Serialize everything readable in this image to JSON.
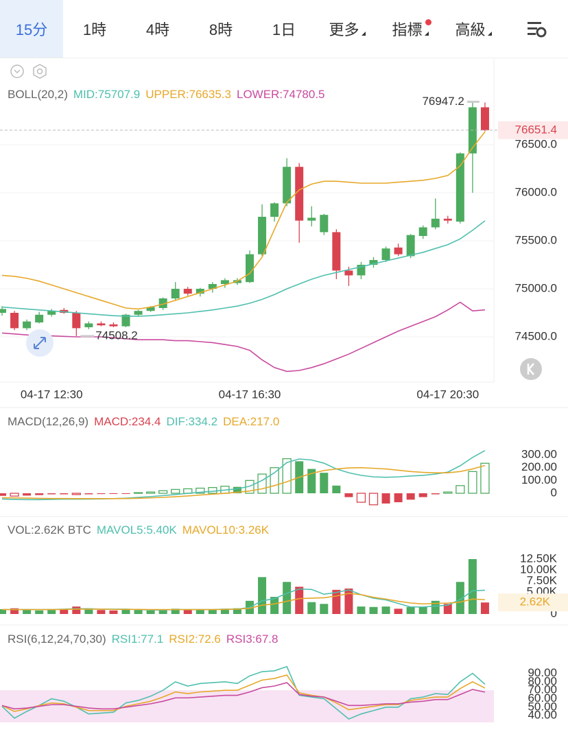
{
  "header": {
    "tabs": [
      "15分",
      "1時",
      "4時",
      "8時",
      "1日",
      "更多",
      "指標",
      "高級"
    ]
  },
  "chart_data": [
    {
      "type": "candlestick",
      "title": "BOLL(20,2)",
      "categories": [
        null,
        null,
        null,
        null,
        "04-17 12:30",
        null,
        null,
        null,
        null,
        null,
        null,
        null,
        null,
        null,
        null,
        null,
        null,
        null,
        null,
        null,
        "04-17 16:30",
        null,
        null,
        null,
        null,
        null,
        null,
        null,
        null,
        null,
        null,
        null,
        null,
        null,
        null,
        null,
        "04-17 20:30",
        null,
        null,
        null
      ],
      "open": [
        74750,
        74750,
        74590,
        74650,
        74730,
        74780,
        74750,
        74600,
        74640,
        74630,
        74610,
        74730,
        74770,
        74800,
        74900,
        75000,
        74950,
        75000,
        75050,
        75060,
        75070,
        75360,
        75750,
        75890,
        76270,
        75710,
        75590,
        75590,
        75190,
        75140,
        75250,
        75300,
        75430,
        75340,
        75550,
        75640,
        75730,
        75700,
        76410,
        76890
      ],
      "high": [
        74820,
        74770,
        74680,
        74760,
        74790,
        74800,
        74770,
        74660,
        74660,
        74650,
        74740,
        74780,
        74820,
        74910,
        75070,
        75020,
        75010,
        75070,
        75110,
        75110,
        75400,
        75880,
        75900,
        76360,
        76310,
        75860,
        75780,
        75620,
        75230,
        75280,
        75330,
        75440,
        75470,
        75570,
        75660,
        75940,
        75760,
        76420,
        76947.2,
        76940
      ],
      "low": [
        74720,
        74570,
        74570,
        74640,
        74710,
        74740,
        74508.2,
        74580,
        74610,
        74600,
        74600,
        74710,
        74760,
        74780,
        74880,
        74930,
        74920,
        74960,
        75010,
        75040,
        75060,
        75340,
        75700,
        75860,
        75480,
        75650,
        75560,
        75100,
        75030,
        75100,
        75220,
        75280,
        75340,
        75320,
        75520,
        75620,
        75680,
        75680,
        76000,
        76640
      ],
      "close": [
        74790,
        74590,
        74660,
        74730,
        74770,
        74750,
        74590,
        74640,
        74620,
        74610,
        74730,
        74770,
        74810,
        74900,
        75000,
        74950,
        75000,
        75050,
        75090,
        75090,
        75360,
        75750,
        75890,
        76270,
        75710,
        75740,
        75770,
        75190,
        75140,
        75250,
        75300,
        75420,
        75360,
        75560,
        75640,
        75730,
        75710,
        76410,
        76890,
        76651.4
      ],
      "up_color": "#4dab5f",
      "down_color": "#d9434f",
      "series": [
        {
          "name": "MID:75707.9",
          "color": "#4fbfae",
          "values": [
            74810,
            74800,
            74790,
            74780,
            74770,
            74760,
            74750,
            74740,
            74730,
            74720,
            74715,
            74715,
            74720,
            74730,
            74740,
            74750,
            74765,
            74780,
            74800,
            74820,
            74850,
            74890,
            74940,
            75000,
            75050,
            75100,
            75140,
            75170,
            75200,
            75230,
            75260,
            75290,
            75320,
            75350,
            75380,
            75420,
            75460,
            75520,
            75610,
            75707.9
          ]
        },
        {
          "name": "UPPER:76635.3",
          "color": "#e6a82a",
          "values": [
            75140,
            75130,
            75110,
            75080,
            75040,
            75000,
            74960,
            74920,
            74880,
            74840,
            74800,
            74790,
            74810,
            74840,
            74880,
            74920,
            74960,
            75000,
            75040,
            75080,
            75160,
            75330,
            75620,
            75900,
            76030,
            76090,
            76120,
            76120,
            76110,
            76100,
            76100,
            76100,
            76110,
            76120,
            76130,
            76150,
            76180,
            76280,
            76470,
            76635.3
          ]
        },
        {
          "name": "LOWER:74780.5",
          "color": "#c94a9f",
          "values": [
            74540,
            74530,
            74520,
            74510,
            74510,
            74505,
            74500,
            74500,
            74500,
            74490,
            74480,
            74470,
            74470,
            74470,
            74460,
            74460,
            74450,
            74440,
            74420,
            74400,
            74360,
            74260,
            74180,
            74140,
            74150,
            74180,
            74220,
            74270,
            74320,
            74380,
            74440,
            74500,
            74560,
            74610,
            74660,
            74710,
            74780,
            74860,
            74770,
            74780.5
          ]
        }
      ],
      "ylim": [
        74050,
        77100
      ],
      "yticks": [
        {
          "value": 76500,
          "label": "76500.0"
        },
        {
          "value": 76000,
          "label": "76000.0"
        },
        {
          "value": 75500,
          "label": "75500.0"
        },
        {
          "value": 75000,
          "label": "75000.0"
        },
        {
          "value": 74500,
          "label": "74500.0"
        }
      ],
      "grid": true
    },
    {
      "type": "bar",
      "title": "MACD(12,26,9)",
      "color_by": "sign",
      "up_color": "#4dab5f",
      "down_color": "#d9434f",
      "bars": {
        "name": "MACD:234.4",
        "values": [
          -20,
          -22,
          -18,
          -14,
          -8,
          -8,
          -10,
          -8,
          -6,
          -5,
          -3,
          5,
          10,
          20,
          30,
          35,
          40,
          45,
          55,
          50,
          100,
          150,
          200,
          270,
          250,
          190,
          160,
          60,
          -30,
          -70,
          -90,
          -80,
          -70,
          -50,
          -30,
          -8,
          10,
          60,
          170,
          234.4
        ]
      },
      "series": [
        {
          "name": "DIF:334.2",
          "color": "#4fbfae",
          "values": [
            -45,
            -48,
            -50,
            -50,
            -48,
            -46,
            -46,
            -45,
            -44,
            -42,
            -38,
            -32,
            -26,
            -18,
            -10,
            0,
            8,
            15,
            25,
            35,
            55,
            100,
            160,
            240,
            268,
            260,
            235,
            190,
            160,
            140,
            128,
            125,
            128,
            135,
            140,
            150,
            165,
            215,
            280,
            334.2
          ]
        },
        {
          "name": "DEA:217.0",
          "color": "#e6a82a",
          "values": [
            -35,
            -36,
            -38,
            -40,
            -41,
            -41,
            -42,
            -42,
            -42,
            -42,
            -41,
            -39,
            -36,
            -32,
            -27,
            -21,
            -14,
            -7,
            0,
            8,
            18,
            35,
            60,
            90,
            125,
            155,
            178,
            190,
            198,
            200,
            195,
            190,
            180,
            170,
            163,
            160,
            160,
            170,
            190,
            217
          ]
        }
      ],
      "ylim": [
        -166,
        477
      ],
      "yticks": [
        {
          "value": 300,
          "label": "300.00"
        },
        {
          "value": 200,
          "label": "200.00"
        },
        {
          "value": 100,
          "label": "100.00"
        },
        0
      ]
    },
    {
      "type": "bar",
      "title": "VOL:2.62K BTC",
      "color_by": "candle",
      "up_color": "#4dab5f",
      "down_color": "#d9434f",
      "bars": {
        "values": [
          1100,
          1300,
          900,
          800,
          900,
          1000,
          1700,
          1000,
          900,
          800,
          1100,
          900,
          800,
          1000,
          1200,
          1000,
          900,
          1000,
          1200,
          1300,
          3000,
          8400,
          3900,
          7300,
          6200,
          2700,
          2300,
          5500,
          5800,
          1700,
          1600,
          1700,
          1200,
          1600,
          1700,
          3000,
          2300,
          7300,
          12500,
          2620
        ]
      },
      "last_label": "2.62K",
      "last_label_color": "#e6a82a",
      "series": [
        {
          "name": "MAVOL5:5.40K",
          "color": "#4fbfae",
          "values": [
            1000,
            1000,
            1000,
            1000,
            1000,
            1100,
            1200,
            1200,
            1100,
            1100,
            1100,
            1000,
            900,
            900,
            1000,
            1000,
            1000,
            1000,
            1100,
            1100,
            1500,
            3000,
            3500,
            4700,
            5700,
            5600,
            4500,
            4900,
            5500,
            4400,
            3600,
            3200,
            2400,
            1600,
            1600,
            1800,
            2000,
            3300,
            5300,
            5400
          ]
        },
        {
          "name": "MAVOL10:3.26K",
          "color": "#e6a82a",
          "values": [
            1000,
            1000,
            1000,
            1000,
            1000,
            1050,
            1100,
            1100,
            1100,
            1050,
            1050,
            1050,
            1000,
            1000,
            1000,
            1000,
            1000,
            1000,
            1050,
            1100,
            1300,
            2000,
            2300,
            2900,
            3500,
            3600,
            3700,
            4100,
            4700,
            4400,
            3800,
            3400,
            2900,
            2500,
            2300,
            2400,
            2500,
            2700,
            3400,
            3260
          ]
        }
      ],
      "ylim": [
        0,
        16400
      ],
      "yticks": [
        {
          "value": 12500,
          "label": "12.50K"
        },
        {
          "value": 10000,
          "label": "10.00K"
        },
        {
          "value": 7500,
          "label": "7.50K"
        },
        {
          "value": 5000,
          "label": "5.00K"
        },
        0
      ]
    },
    {
      "type": "line",
      "title": "RSI(6,12,24,70,30)",
      "band": [
        30,
        70
      ],
      "band_color": "#f7e3f3",
      "series": [
        {
          "name": "RSI1:77.1",
          "color": "#4fbfae",
          "values": [
            51,
            37,
            45,
            52,
            60,
            57,
            50,
            42,
            43,
            44,
            55,
            58,
            63,
            70,
            80,
            75,
            78,
            79,
            80,
            78,
            87,
            92,
            93,
            98,
            64,
            62,
            60,
            48,
            36,
            42,
            46,
            50,
            50,
            60,
            62,
            66,
            65,
            80,
            90,
            77.1
          ]
        },
        {
          "name": "RSI2:72.6",
          "color": "#e6a82a",
          "values": [
            52,
            45,
            48,
            52,
            55,
            54,
            50,
            46,
            46,
            46,
            51,
            54,
            57,
            62,
            68,
            66,
            68,
            69,
            70,
            70,
            76,
            82,
            84,
            88,
            67,
            64,
            62,
            55,
            47,
            49,
            51,
            53,
            53,
            58,
            60,
            62,
            62,
            72,
            80,
            72.6
          ]
        },
        {
          "name": "RSI3:67.8",
          "color": "#c94a9f",
          "values": [
            52,
            48,
            49,
            51,
            53,
            53,
            51,
            49,
            48,
            48,
            50,
            52,
            54,
            57,
            61,
            61,
            62,
            63,
            64,
            64,
            68,
            73,
            75,
            79,
            65,
            63,
            62,
            57,
            52,
            52,
            53,
            54,
            54,
            56,
            57,
            59,
            59,
            65,
            71,
            67.8
          ]
        }
      ],
      "ylim": [
        32,
        118
      ],
      "yticks": [
        {
          "value": 90,
          "label": "90.00"
        },
        {
          "value": 80,
          "label": "80.00"
        },
        {
          "value": 70,
          "label": "70.00"
        },
        {
          "value": 60,
          "label": "60.00"
        },
        {
          "value": 50,
          "label": "50.00"
        },
        {
          "value": 40,
          "label": "40.00"
        }
      ]
    }
  ]
}
